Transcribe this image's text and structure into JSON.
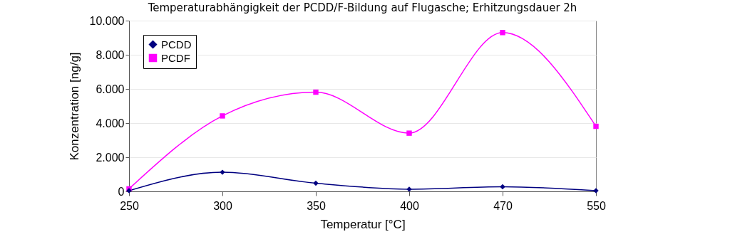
{
  "chart_data": {
    "type": "line",
    "title": "Temperaturabhängigkeit der PCDD/F-Bildung auf Flugasche; Erhitzungsdauer 2h",
    "xlabel": "Temperatur [°C]",
    "ylabel": "Konzentration [ng/g]",
    "categories": [
      "250",
      "300",
      "350",
      "400",
      "470",
      "550"
    ],
    "series": [
      {
        "name": "PCDD",
        "color": "#000080",
        "marker": "diamond",
        "values": [
          40,
          1120,
          480,
          130,
          270,
          40
        ]
      },
      {
        "name": "PCDF",
        "color": "#ff00ff",
        "marker": "square",
        "values": [
          150,
          4420,
          5810,
          3410,
          9300,
          3810
        ]
      }
    ],
    "ylim": [
      0,
      10000
    ],
    "yticks": [
      {
        "value": 0,
        "label": "0"
      },
      {
        "value": 2000,
        "label": "2.000"
      },
      {
        "value": 4000,
        "label": "4.000"
      },
      {
        "value": 6000,
        "label": "6.000"
      },
      {
        "value": 8000,
        "label": "8.000"
      },
      {
        "value": 10000,
        "label": "10.000"
      }
    ],
    "grid": "y",
    "legend": "top left",
    "line_style": "solid"
  }
}
